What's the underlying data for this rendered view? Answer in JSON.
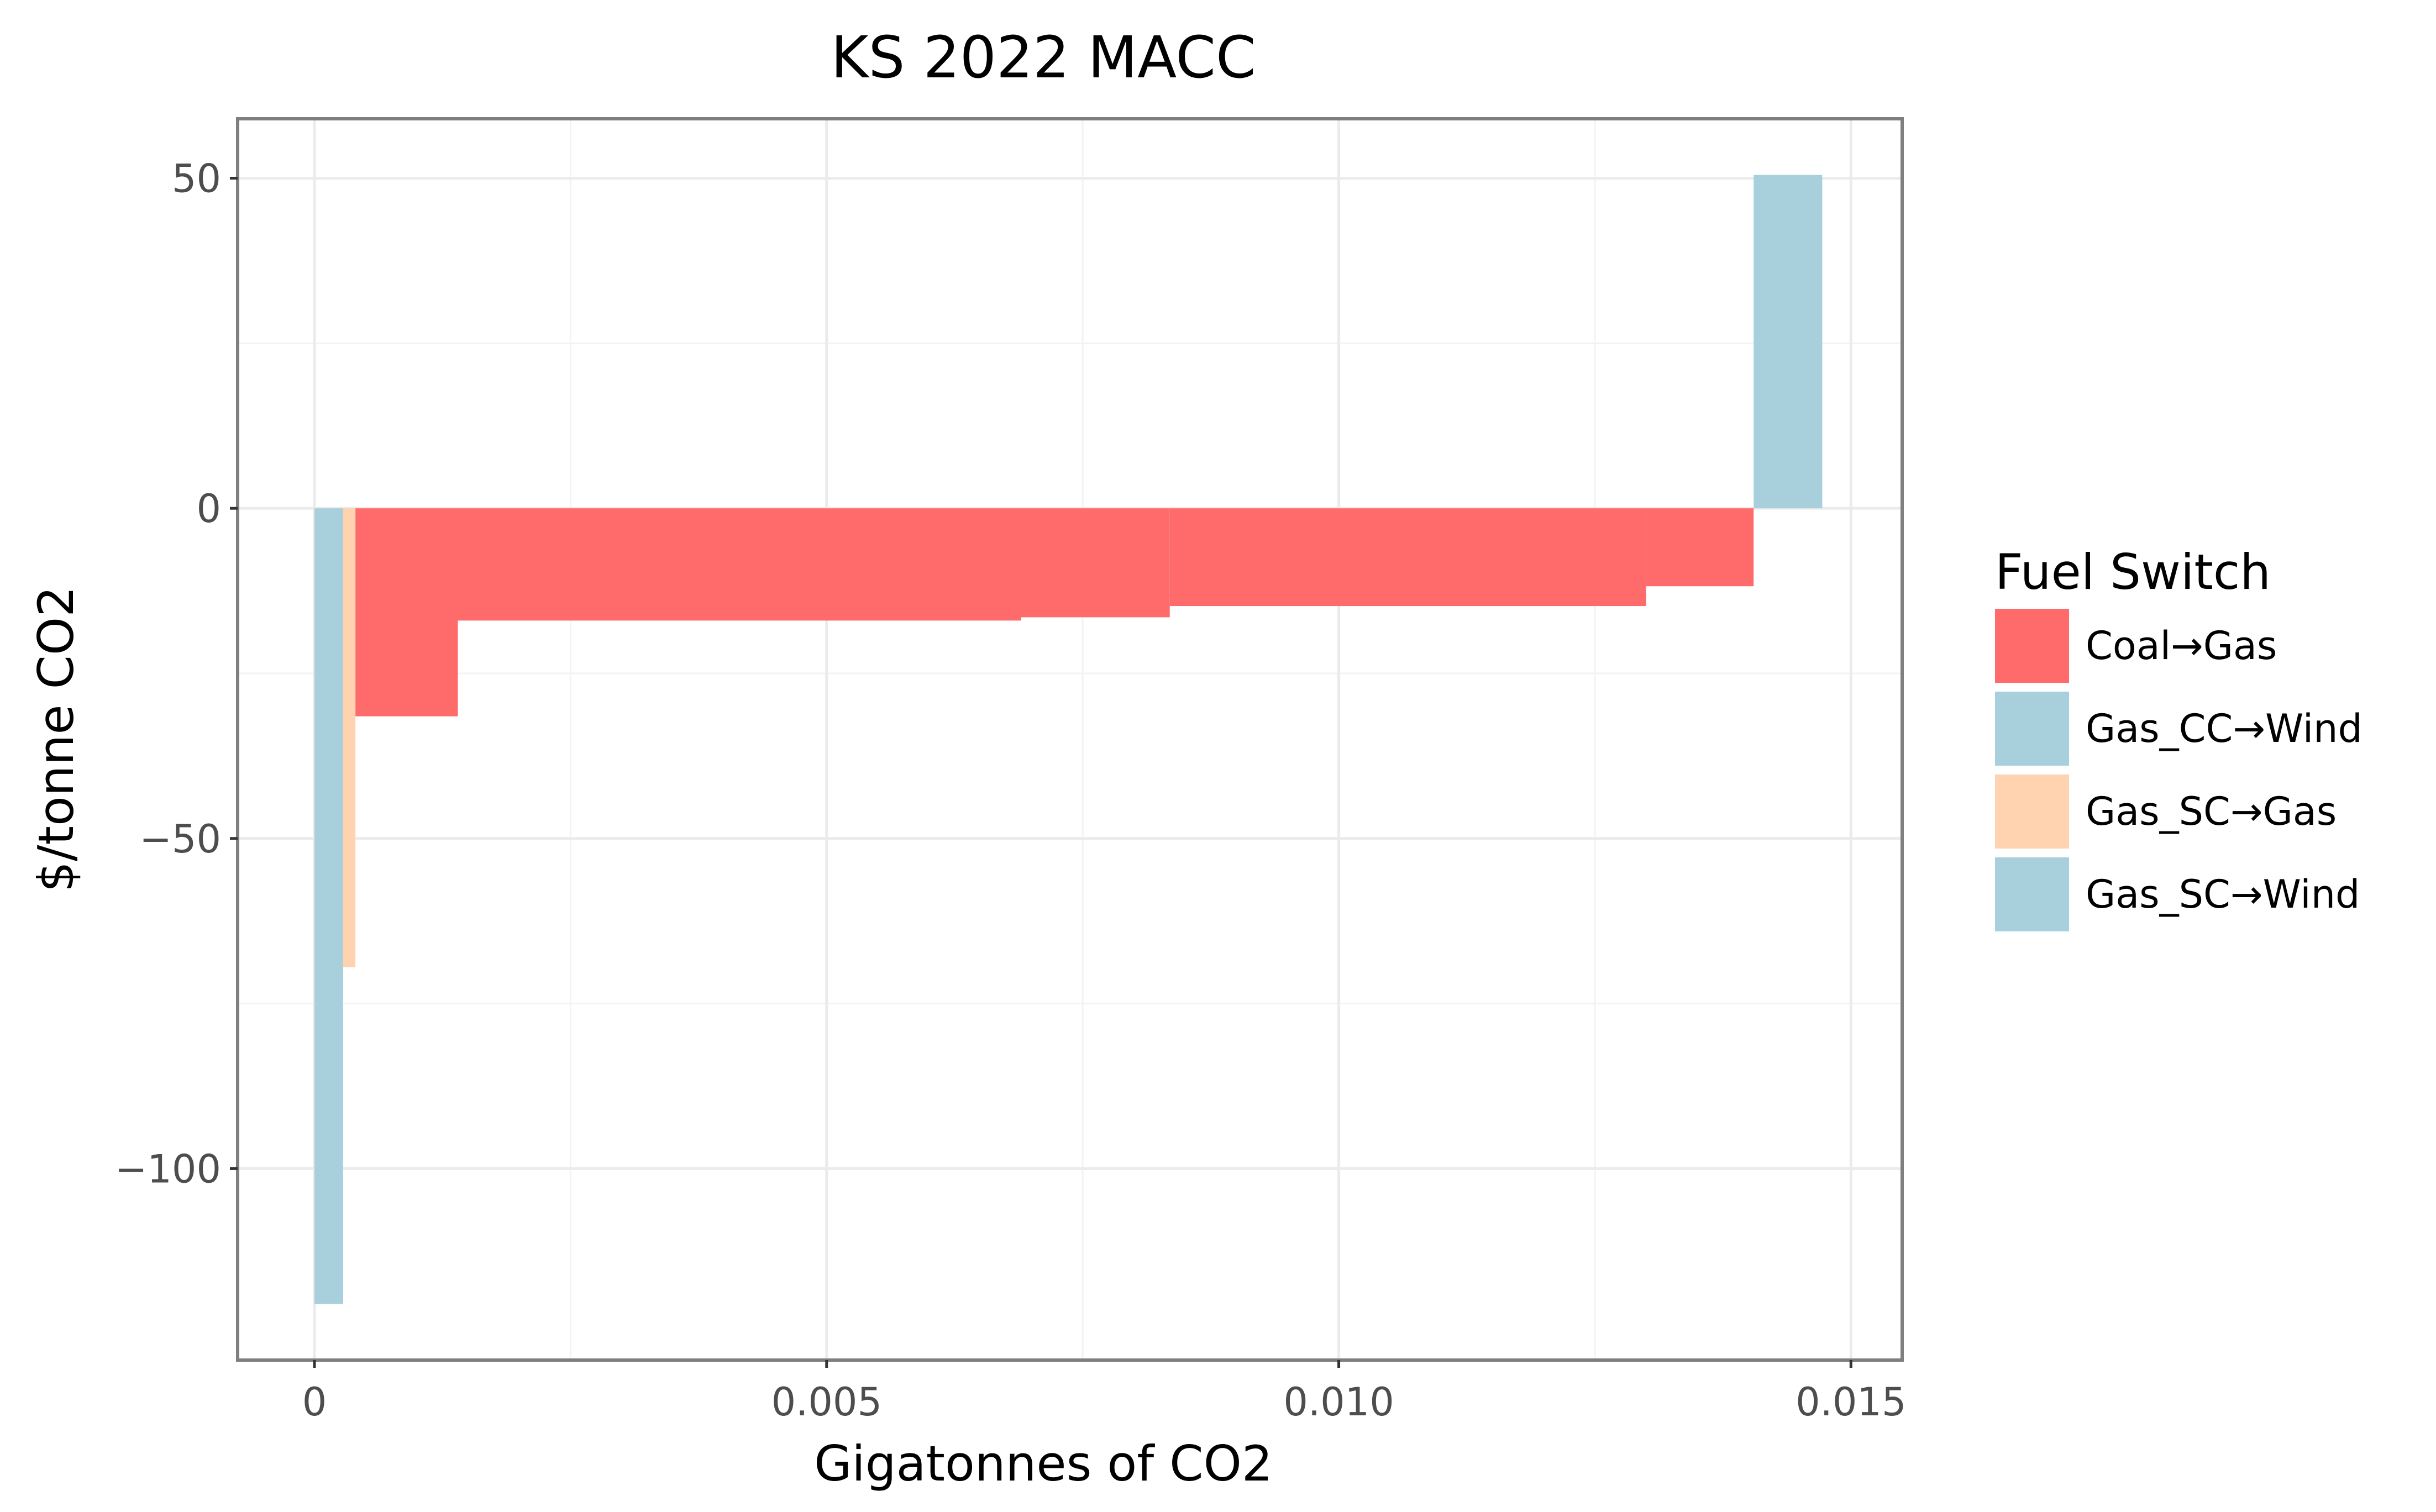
{
  "chart_data": {
    "type": "bar",
    "title": "KS 2022 MACC",
    "xlabel": "Gigatonnes of CO2",
    "ylabel": "$/tonne CO2",
    "xlim": [
      -0.00075,
      0.0155
    ],
    "ylim": [
      -129,
      59
    ],
    "x_ticks": [
      {
        "value": 0,
        "label": "0"
      },
      {
        "value": 0.005,
        "label": "0.005"
      },
      {
        "value": 0.01,
        "label": "0.010"
      },
      {
        "value": 0.015,
        "label": "0.015"
      }
    ],
    "y_ticks": [
      {
        "value": 50,
        "label": "50"
      },
      {
        "value": 0,
        "label": "0"
      },
      {
        "value": -50,
        "label": "−50"
      },
      {
        "value": -100,
        "label": "−100"
      }
    ],
    "grid": true,
    "legend": {
      "title": "Fuel Switch",
      "placement": "right",
      "entries": [
        {
          "name": "Coal→Gas",
          "color": "#ff6b6b"
        },
        {
          "name": "Gas_CC→Wind",
          "color": "#a8d0dc"
        },
        {
          "name": "Gas_SC→Gas",
          "color": "#ffd2b0"
        },
        {
          "name": "Gas_SC→Wind",
          "color": "#a8d0dc"
        }
      ]
    },
    "bars": [
      {
        "series": "Gas_SC→Wind",
        "x_start": 0.0,
        "x_end": 0.00028,
        "value": -120.5
      },
      {
        "series": "Gas_SC→Gas",
        "x_start": 0.00028,
        "x_end": 0.0004,
        "value": -69.5
      },
      {
        "series": "Coal→Gas",
        "x_start": 0.0004,
        "x_end": 0.0014,
        "value": -31.5
      },
      {
        "series": "Coal→Gas",
        "x_start": 0.0014,
        "x_end": 0.0069,
        "value": -17
      },
      {
        "series": "Coal→Gas",
        "x_start": 0.0069,
        "x_end": 0.00835,
        "value": -16.5
      },
      {
        "series": "Coal→Gas",
        "x_start": 0.00835,
        "x_end": 0.013,
        "value": -14.8
      },
      {
        "series": "Coal→Gas",
        "x_start": 0.013,
        "x_end": 0.01405,
        "value": -11.8
      },
      {
        "series": "Gas_CC→Wind",
        "x_start": 0.01405,
        "x_end": 0.01472,
        "value": 50.5
      }
    ]
  }
}
